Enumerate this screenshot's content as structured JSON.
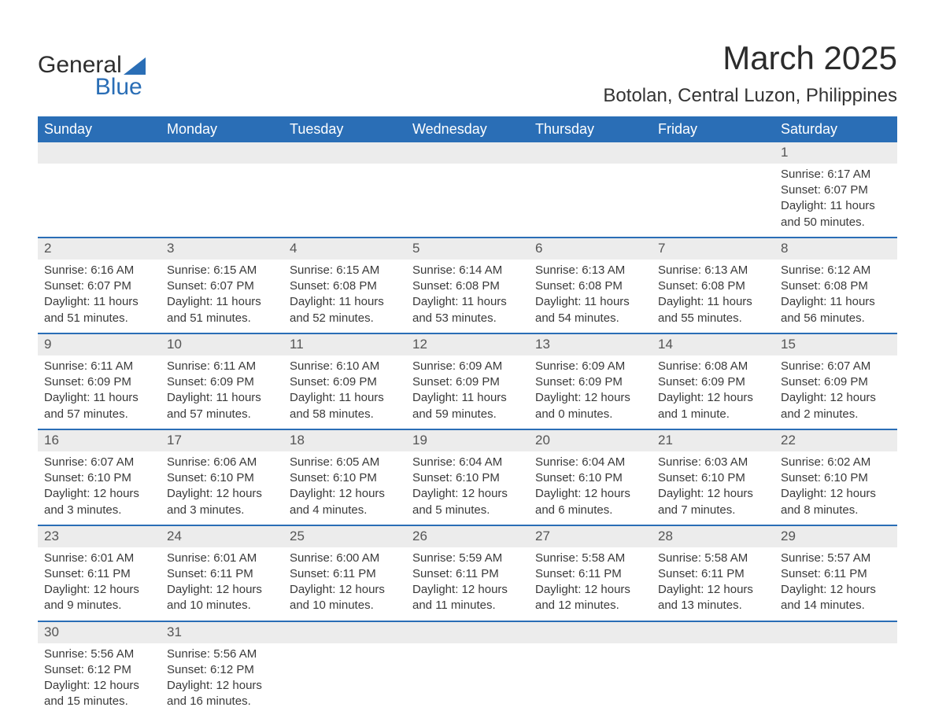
{
  "logo": {
    "line1": "General",
    "line2": "Blue"
  },
  "header": {
    "month_title": "March 2025",
    "location": "Botolan, Central Luzon, Philippines"
  },
  "calendar": {
    "type": "table",
    "header_bg": "#2a6eb6",
    "header_text_color": "#ffffff",
    "daynum_bg": "#ececec",
    "row_divider_color": "#2a6eb6",
    "text_color": "#3a3a3a",
    "weekdays": [
      "Sunday",
      "Monday",
      "Tuesday",
      "Wednesday",
      "Thursday",
      "Friday",
      "Saturday"
    ],
    "weeks": [
      [
        null,
        null,
        null,
        null,
        null,
        null,
        {
          "n": "1",
          "sr": "Sunrise: 6:17 AM",
          "ss": "Sunset: 6:07 PM",
          "d1": "Daylight: 11 hours",
          "d2": "and 50 minutes."
        }
      ],
      [
        {
          "n": "2",
          "sr": "Sunrise: 6:16 AM",
          "ss": "Sunset: 6:07 PM",
          "d1": "Daylight: 11 hours",
          "d2": "and 51 minutes."
        },
        {
          "n": "3",
          "sr": "Sunrise: 6:15 AM",
          "ss": "Sunset: 6:07 PM",
          "d1": "Daylight: 11 hours",
          "d2": "and 51 minutes."
        },
        {
          "n": "4",
          "sr": "Sunrise: 6:15 AM",
          "ss": "Sunset: 6:08 PM",
          "d1": "Daylight: 11 hours",
          "d2": "and 52 minutes."
        },
        {
          "n": "5",
          "sr": "Sunrise: 6:14 AM",
          "ss": "Sunset: 6:08 PM",
          "d1": "Daylight: 11 hours",
          "d2": "and 53 minutes."
        },
        {
          "n": "6",
          "sr": "Sunrise: 6:13 AM",
          "ss": "Sunset: 6:08 PM",
          "d1": "Daylight: 11 hours",
          "d2": "and 54 minutes."
        },
        {
          "n": "7",
          "sr": "Sunrise: 6:13 AM",
          "ss": "Sunset: 6:08 PM",
          "d1": "Daylight: 11 hours",
          "d2": "and 55 minutes."
        },
        {
          "n": "8",
          "sr": "Sunrise: 6:12 AM",
          "ss": "Sunset: 6:08 PM",
          "d1": "Daylight: 11 hours",
          "d2": "and 56 minutes."
        }
      ],
      [
        {
          "n": "9",
          "sr": "Sunrise: 6:11 AM",
          "ss": "Sunset: 6:09 PM",
          "d1": "Daylight: 11 hours",
          "d2": "and 57 minutes."
        },
        {
          "n": "10",
          "sr": "Sunrise: 6:11 AM",
          "ss": "Sunset: 6:09 PM",
          "d1": "Daylight: 11 hours",
          "d2": "and 57 minutes."
        },
        {
          "n": "11",
          "sr": "Sunrise: 6:10 AM",
          "ss": "Sunset: 6:09 PM",
          "d1": "Daylight: 11 hours",
          "d2": "and 58 minutes."
        },
        {
          "n": "12",
          "sr": "Sunrise: 6:09 AM",
          "ss": "Sunset: 6:09 PM",
          "d1": "Daylight: 11 hours",
          "d2": "and 59 minutes."
        },
        {
          "n": "13",
          "sr": "Sunrise: 6:09 AM",
          "ss": "Sunset: 6:09 PM",
          "d1": "Daylight: 12 hours",
          "d2": "and 0 minutes."
        },
        {
          "n": "14",
          "sr": "Sunrise: 6:08 AM",
          "ss": "Sunset: 6:09 PM",
          "d1": "Daylight: 12 hours",
          "d2": "and 1 minute."
        },
        {
          "n": "15",
          "sr": "Sunrise: 6:07 AM",
          "ss": "Sunset: 6:09 PM",
          "d1": "Daylight: 12 hours",
          "d2": "and 2 minutes."
        }
      ],
      [
        {
          "n": "16",
          "sr": "Sunrise: 6:07 AM",
          "ss": "Sunset: 6:10 PM",
          "d1": "Daylight: 12 hours",
          "d2": "and 3 minutes."
        },
        {
          "n": "17",
          "sr": "Sunrise: 6:06 AM",
          "ss": "Sunset: 6:10 PM",
          "d1": "Daylight: 12 hours",
          "d2": "and 3 minutes."
        },
        {
          "n": "18",
          "sr": "Sunrise: 6:05 AM",
          "ss": "Sunset: 6:10 PM",
          "d1": "Daylight: 12 hours",
          "d2": "and 4 minutes."
        },
        {
          "n": "19",
          "sr": "Sunrise: 6:04 AM",
          "ss": "Sunset: 6:10 PM",
          "d1": "Daylight: 12 hours",
          "d2": "and 5 minutes."
        },
        {
          "n": "20",
          "sr": "Sunrise: 6:04 AM",
          "ss": "Sunset: 6:10 PM",
          "d1": "Daylight: 12 hours",
          "d2": "and 6 minutes."
        },
        {
          "n": "21",
          "sr": "Sunrise: 6:03 AM",
          "ss": "Sunset: 6:10 PM",
          "d1": "Daylight: 12 hours",
          "d2": "and 7 minutes."
        },
        {
          "n": "22",
          "sr": "Sunrise: 6:02 AM",
          "ss": "Sunset: 6:10 PM",
          "d1": "Daylight: 12 hours",
          "d2": "and 8 minutes."
        }
      ],
      [
        {
          "n": "23",
          "sr": "Sunrise: 6:01 AM",
          "ss": "Sunset: 6:11 PM",
          "d1": "Daylight: 12 hours",
          "d2": "and 9 minutes."
        },
        {
          "n": "24",
          "sr": "Sunrise: 6:01 AM",
          "ss": "Sunset: 6:11 PM",
          "d1": "Daylight: 12 hours",
          "d2": "and 10 minutes."
        },
        {
          "n": "25",
          "sr": "Sunrise: 6:00 AM",
          "ss": "Sunset: 6:11 PM",
          "d1": "Daylight: 12 hours",
          "d2": "and 10 minutes."
        },
        {
          "n": "26",
          "sr": "Sunrise: 5:59 AM",
          "ss": "Sunset: 6:11 PM",
          "d1": "Daylight: 12 hours",
          "d2": "and 11 minutes."
        },
        {
          "n": "27",
          "sr": "Sunrise: 5:58 AM",
          "ss": "Sunset: 6:11 PM",
          "d1": "Daylight: 12 hours",
          "d2": "and 12 minutes."
        },
        {
          "n": "28",
          "sr": "Sunrise: 5:58 AM",
          "ss": "Sunset: 6:11 PM",
          "d1": "Daylight: 12 hours",
          "d2": "and 13 minutes."
        },
        {
          "n": "29",
          "sr": "Sunrise: 5:57 AM",
          "ss": "Sunset: 6:11 PM",
          "d1": "Daylight: 12 hours",
          "d2": "and 14 minutes."
        }
      ],
      [
        {
          "n": "30",
          "sr": "Sunrise: 5:56 AM",
          "ss": "Sunset: 6:12 PM",
          "d1": "Daylight: 12 hours",
          "d2": "and 15 minutes."
        },
        {
          "n": "31",
          "sr": "Sunrise: 5:56 AM",
          "ss": "Sunset: 6:12 PM",
          "d1": "Daylight: 12 hours",
          "d2": "and 16 minutes."
        },
        null,
        null,
        null,
        null,
        null
      ]
    ]
  }
}
